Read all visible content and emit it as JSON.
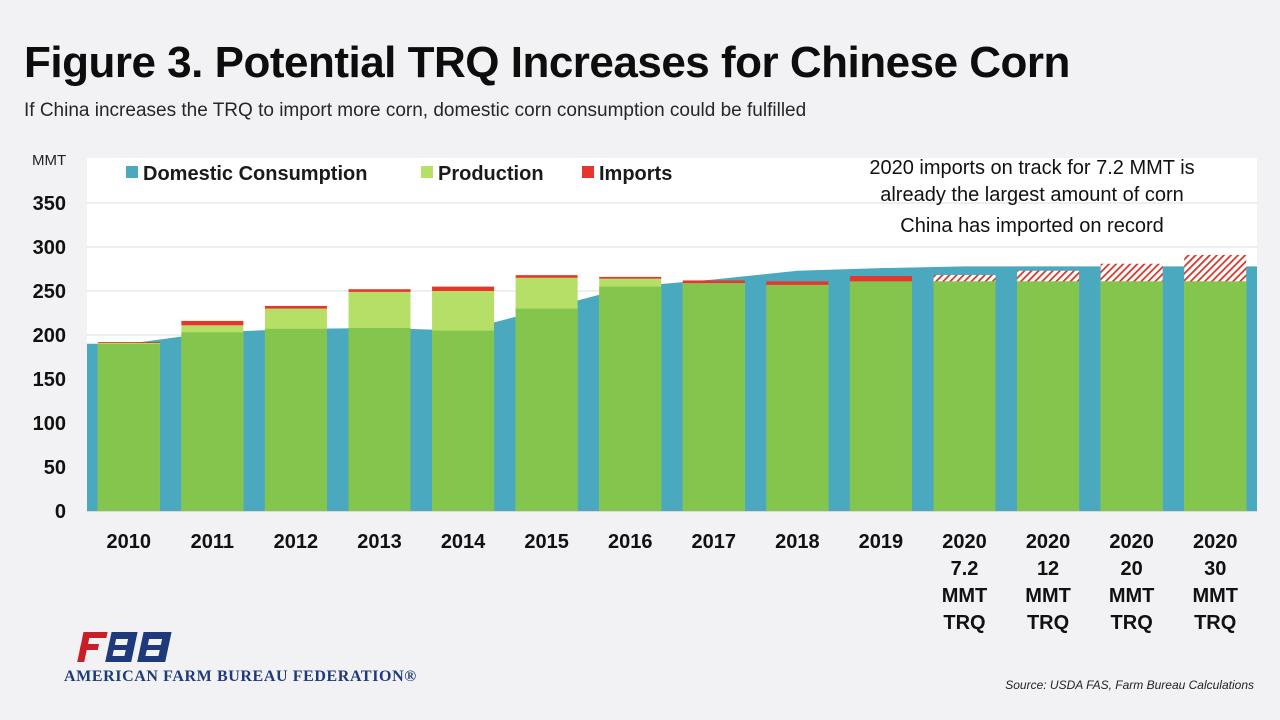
{
  "header": {
    "title": "Figure 3. Potential TRQ Increases for Chinese Corn",
    "subtitle": "If China increases the TRQ to import more corn, domestic corn consumption could be fulfilled"
  },
  "footer": {
    "organization": "AMERICAN FARM BUREAU FEDERATION®",
    "source": "Source:  USDA FAS, Farm Bureau Calculations"
  },
  "chart_data": {
    "type": "bar",
    "unit_label": "MMT",
    "ylim": [
      0,
      350
    ],
    "yticks": [
      0,
      50,
      100,
      150,
      200,
      250,
      300,
      350
    ],
    "grid": true,
    "legend_position": "top",
    "categories": [
      [
        "2010"
      ],
      [
        "2011"
      ],
      [
        "2012"
      ],
      [
        "2013"
      ],
      [
        "2014"
      ],
      [
        "2015"
      ],
      [
        "2016"
      ],
      [
        "2017"
      ],
      [
        "2018"
      ],
      [
        "2019"
      ],
      [
        "2020",
        "7.2",
        "MMT",
        "TRQ"
      ],
      [
        "2020",
        "12",
        "MMT",
        "TRQ"
      ],
      [
        "2020",
        "20",
        "MMT",
        "TRQ"
      ],
      [
        "2020",
        "30",
        "MMT",
        "TRQ"
      ]
    ],
    "series": [
      {
        "name": "Domestic Consumption",
        "color": "#4aa8bf",
        "style": "area",
        "values": [
          190,
          203,
          207,
          208,
          205,
          230,
          255,
          263,
          273,
          276,
          278,
          278,
          278,
          278
        ]
      },
      {
        "name": "Production",
        "color": "#b5df66",
        "style": "stacked-bar",
        "values": [
          191,
          211,
          230,
          249,
          250,
          265,
          264,
          259,
          257,
          261,
          261,
          261,
          261,
          261
        ]
      },
      {
        "name": "Imports",
        "color": "#e8352b",
        "style": "stacked-bar",
        "values": [
          1,
          5,
          3,
          3,
          5,
          3,
          2,
          3,
          4,
          6,
          7.2,
          12,
          20,
          30
        ],
        "projected_from_index": 10
      }
    ],
    "annotation": {
      "lines": [
        "2020 imports on track for 7.2 MMT is",
        "already the largest amount of corn",
        "China has imported on record"
      ]
    }
  }
}
